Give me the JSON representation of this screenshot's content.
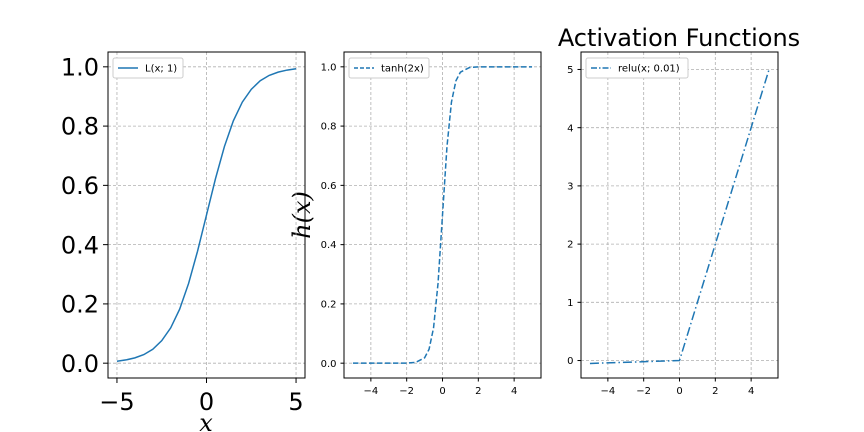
{
  "figure": {
    "suptitle": "Activation Functions",
    "common_ylabel": "h(x)",
    "common_xlabel": "x",
    "line_color": "#1f77b4"
  },
  "chart_data": [
    {
      "type": "line",
      "series": [
        {
          "name": "L(x; 1)",
          "function": "logistic",
          "k": 1,
          "linestyle": "solid"
        }
      ],
      "x": [
        -5,
        -4.5,
        -4,
        -3.5,
        -3,
        -2.5,
        -2,
        -1.5,
        -1,
        -0.5,
        0,
        0.5,
        1,
        1.5,
        2,
        2.5,
        3,
        3.5,
        4,
        4.5,
        5
      ],
      "y": [
        0.0067,
        0.011,
        0.018,
        0.029,
        0.047,
        0.076,
        0.119,
        0.182,
        0.269,
        0.378,
        0.5,
        0.622,
        0.731,
        0.818,
        0.881,
        0.924,
        0.953,
        0.971,
        0.982,
        0.989,
        0.9933
      ],
      "xlim": [
        -5.5,
        5.5
      ],
      "ylim": [
        -0.05,
        1.05
      ],
      "xticks": [
        "−5",
        "0",
        "5"
      ],
      "yticks": [
        "0.0",
        "0.2",
        "0.4",
        "0.6",
        "0.8",
        "1.0"
      ],
      "xlabel": "x",
      "grid": true,
      "legend_position": "upper-left"
    },
    {
      "type": "line",
      "series": [
        {
          "name": "tanh(2x)",
          "function": "tanh",
          "k": 2,
          "linestyle": "dashed"
        }
      ],
      "x": [
        -5,
        -2,
        -1.5,
        -1,
        -0.75,
        -0.5,
        -0.25,
        0,
        0.25,
        0.5,
        0.75,
        1,
        1.5,
        2,
        5
      ],
      "y": [
        0.0,
        0.0003,
        0.0025,
        0.018,
        0.047,
        0.119,
        0.269,
        0.5,
        0.731,
        0.881,
        0.953,
        0.982,
        0.9975,
        0.9997,
        1.0
      ],
      "xlim": [
        -5.5,
        5.5
      ],
      "ylim": [
        -0.05,
        1.05
      ],
      "xticks": [
        "−4",
        "−2",
        "0",
        "2",
        "4"
      ],
      "yticks": [
        "0.0",
        "0.2",
        "0.4",
        "0.6",
        "0.8",
        "1.0"
      ],
      "grid": true,
      "legend_position": "upper-left"
    },
    {
      "type": "line",
      "series": [
        {
          "name": "relu(x; 0.01)",
          "function": "leaky_relu",
          "slope": 0.01,
          "linestyle": "dashdot"
        }
      ],
      "x": [
        -5,
        0,
        5
      ],
      "y": [
        -0.05,
        0,
        5
      ],
      "xlim": [
        -5.5,
        5.5
      ],
      "ylim": [
        -0.3,
        5.3
      ],
      "xticks": [
        "−4",
        "−2",
        "0",
        "2",
        "4"
      ],
      "yticks": [
        "0",
        "1",
        "2",
        "3",
        "4",
        "5"
      ],
      "grid": true,
      "legend_position": "upper-left"
    }
  ]
}
